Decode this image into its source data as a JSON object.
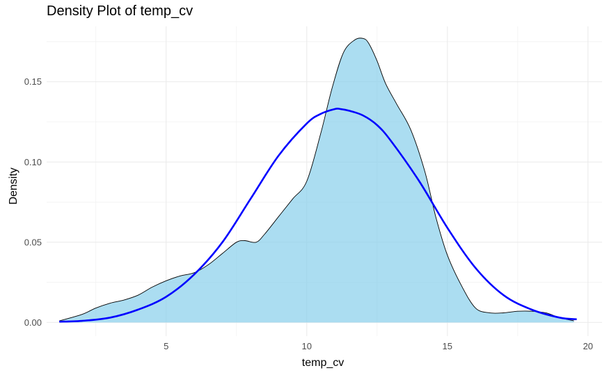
{
  "chart_data": {
    "type": "area",
    "title": "Density Plot of temp_cv",
    "xlabel": "temp_cv",
    "ylabel": "Density",
    "xlim": [
      0.75,
      20.5
    ],
    "ylim": [
      -0.0085,
      0.1845
    ],
    "x_ticks": [
      5,
      10,
      15,
      20
    ],
    "x_tick_labels": [
      "5",
      "10",
      "15",
      "20"
    ],
    "y_ticks": [
      0.0,
      0.05,
      0.1,
      0.15
    ],
    "y_tick_labels": [
      "0.00",
      "0.05",
      "0.10",
      "0.15"
    ],
    "grid": true,
    "legend": "none",
    "series": [
      {
        "kind": "kernel-density-area",
        "fill": "#87CEEB",
        "stroke": "#000000",
        "x": [
          1.2,
          2.0,
          2.5,
          3.0,
          3.5,
          4.0,
          4.5,
          5.0,
          5.5,
          6.0,
          6.5,
          7.0,
          7.5,
          7.8,
          8.2,
          8.5,
          9.0,
          9.5,
          10.0,
          10.5,
          10.9,
          11.3,
          11.7,
          12.0,
          12.2,
          12.5,
          12.8,
          13.2,
          13.7,
          14.2,
          14.6,
          15.0,
          15.5,
          16.0,
          16.5,
          17.0,
          17.5,
          18.0,
          18.5,
          19.0,
          19.5
        ],
        "y": [
          0.001,
          0.005,
          0.009,
          0.012,
          0.014,
          0.017,
          0.022,
          0.026,
          0.029,
          0.031,
          0.036,
          0.043,
          0.05,
          0.051,
          0.05,
          0.055,
          0.066,
          0.077,
          0.088,
          0.118,
          0.146,
          0.168,
          0.176,
          0.177,
          0.174,
          0.163,
          0.149,
          0.136,
          0.12,
          0.094,
          0.065,
          0.042,
          0.023,
          0.009,
          0.006,
          0.006,
          0.007,
          0.007,
          0.006,
          0.003,
          0.001
        ]
      },
      {
        "kind": "normal-curve",
        "stroke": "#0000FF",
        "x": [
          1.2,
          2.0,
          3.0,
          4.0,
          5.0,
          6.0,
          7.0,
          8.0,
          9.0,
          10.0,
          10.5,
          11.0,
          11.2,
          11.5,
          12.0,
          12.5,
          13.0,
          14.0,
          15.0,
          16.0,
          17.0,
          18.0,
          19.0,
          19.6
        ],
        "y": [
          0.0005,
          0.001,
          0.003,
          0.008,
          0.016,
          0.03,
          0.05,
          0.077,
          0.104,
          0.124,
          0.13,
          0.133,
          0.133,
          0.132,
          0.129,
          0.123,
          0.113,
          0.088,
          0.059,
          0.034,
          0.017,
          0.008,
          0.003,
          0.002
        ]
      }
    ]
  }
}
